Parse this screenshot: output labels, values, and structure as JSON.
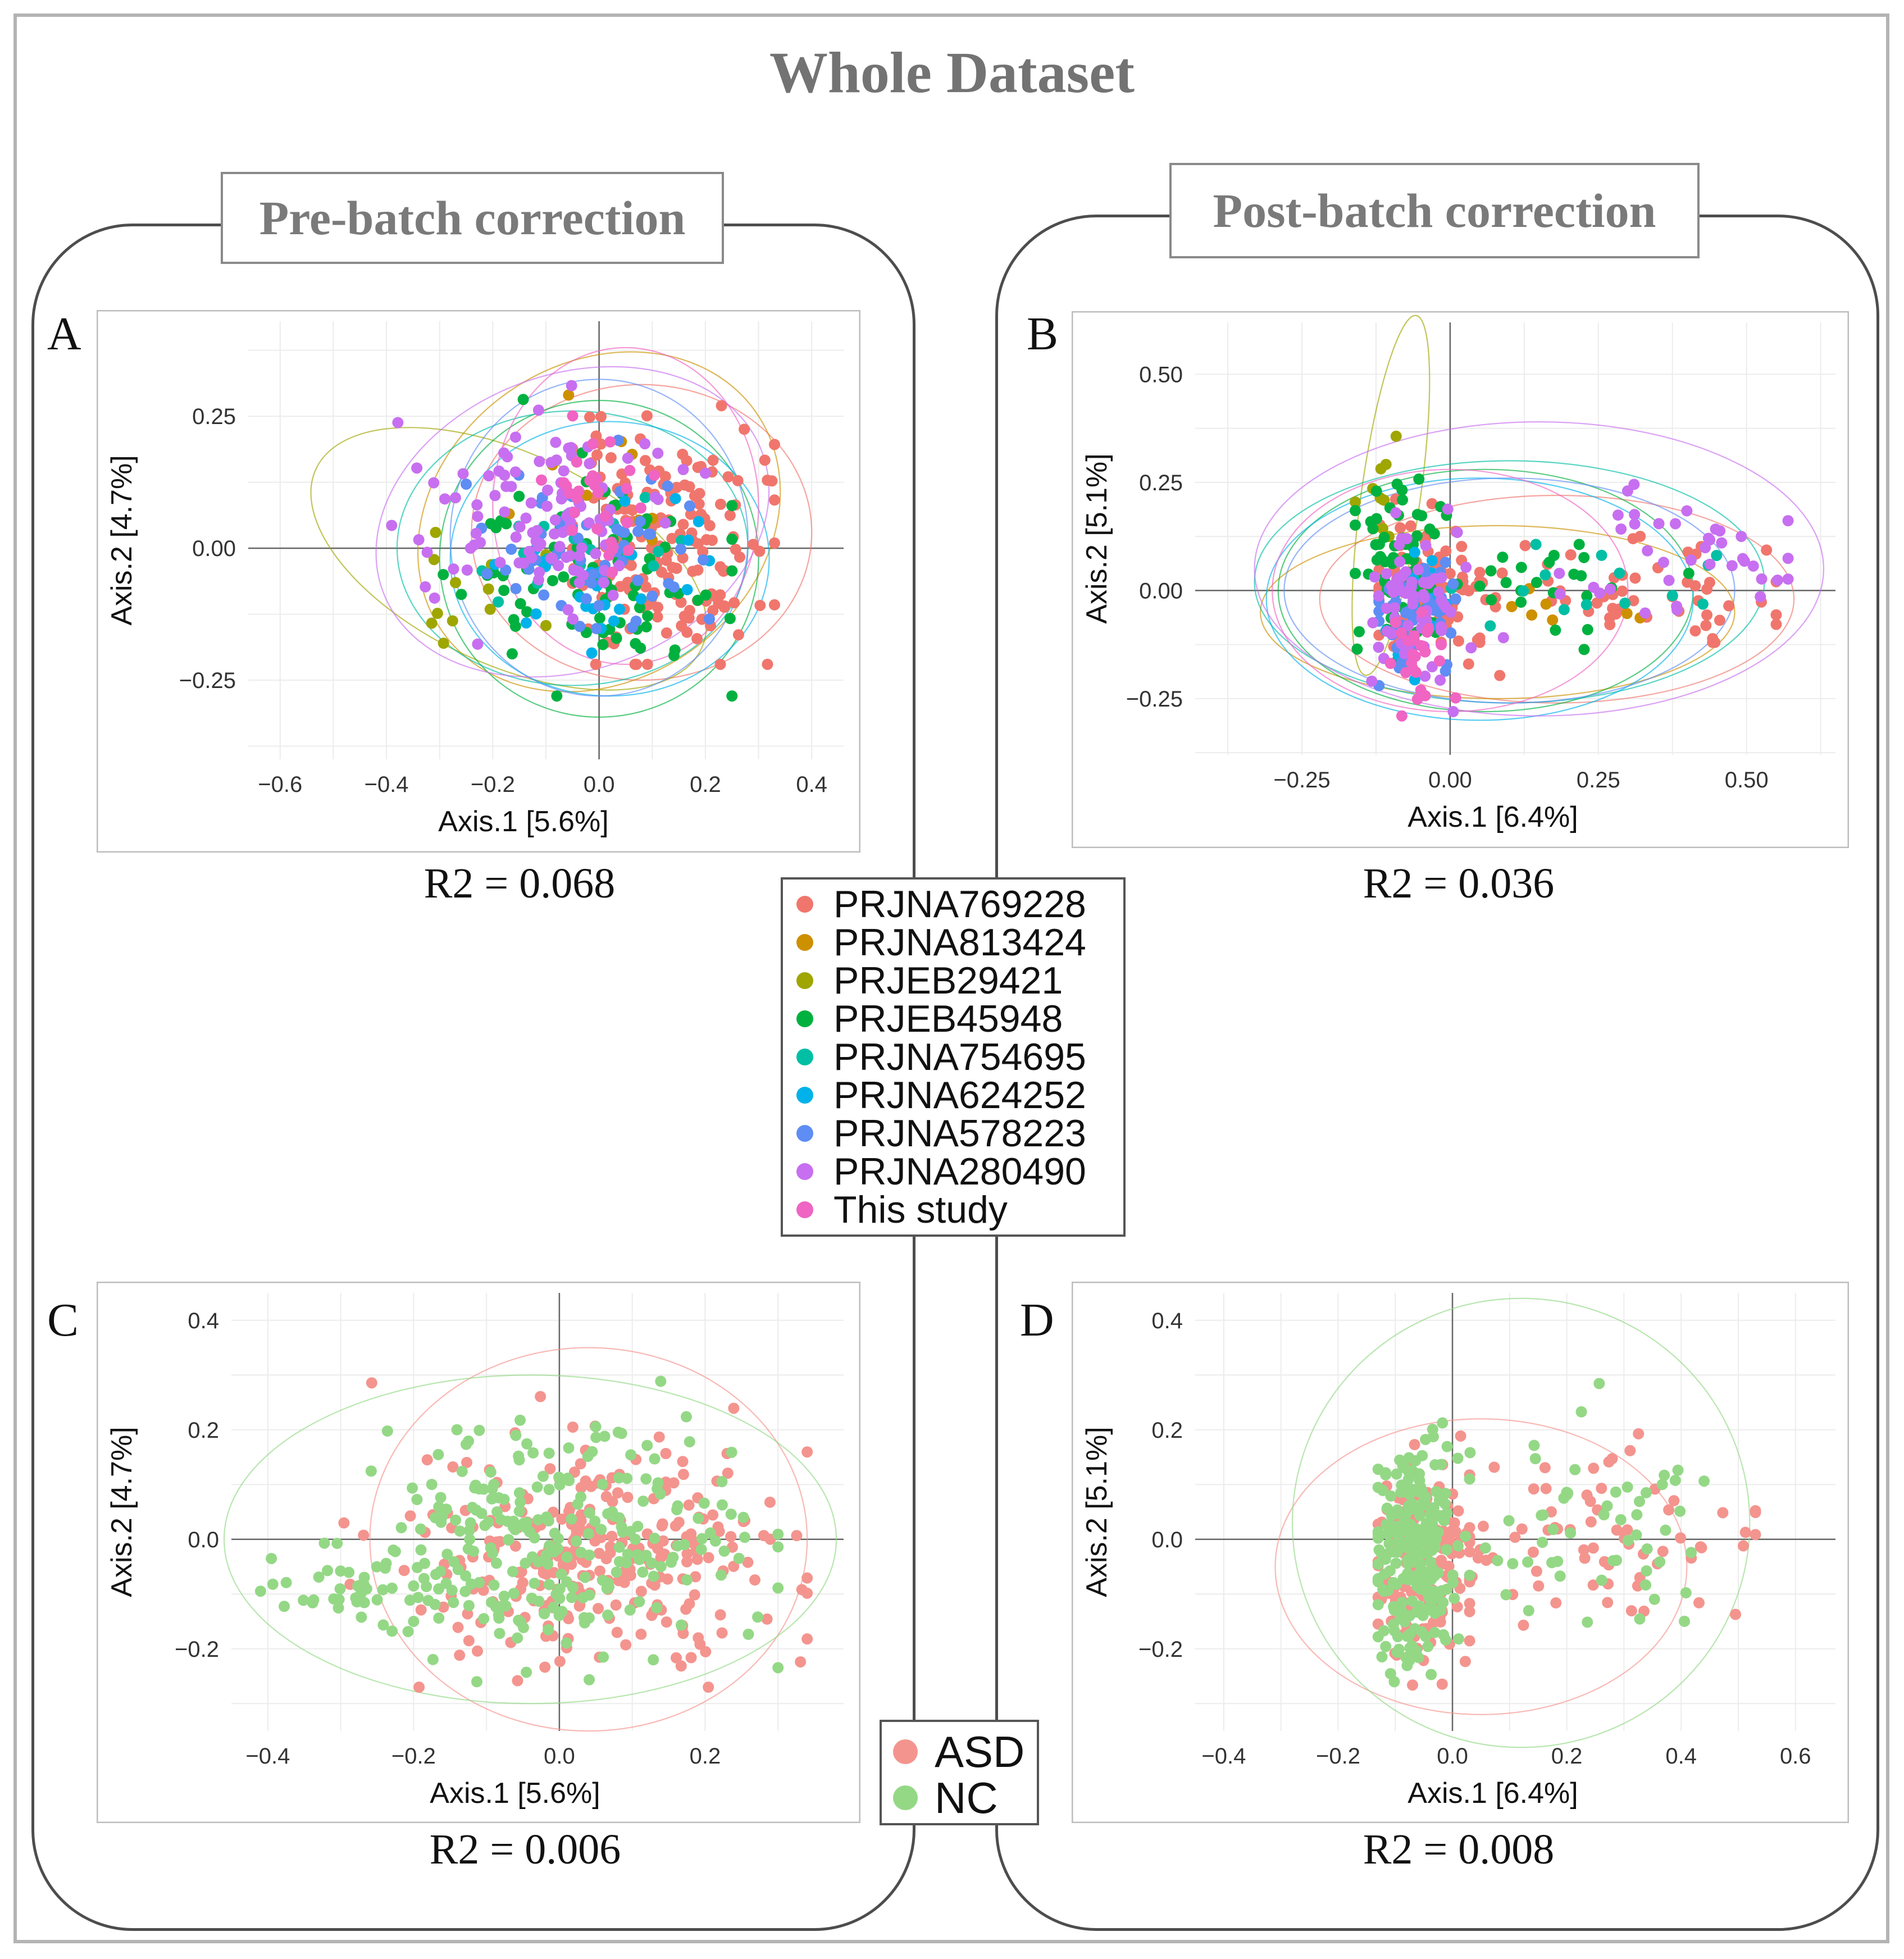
{
  "title": "Whole Dataset",
  "sections": {
    "pre_label": "Pre-batch correction",
    "post_label": "Post-batch correction"
  },
  "batch_legend": {
    "items": [
      {
        "label": "PRJNA769228",
        "color": "#F0766D"
      },
      {
        "label": "PRJNA813424",
        "color": "#CD9000"
      },
      {
        "label": "PRJEB29421",
        "color": "#9FA600"
      },
      {
        "label": "PRJEB45948",
        "color": "#00B13F"
      },
      {
        "label": "PRJNA754695",
        "color": "#00BFA4"
      },
      {
        "label": "PRJNA624252",
        "color": "#00B2E9"
      },
      {
        "label": "PRJNA578223",
        "color": "#5E8DF4"
      },
      {
        "label": "PRJNA280490",
        "color": "#C76FF0"
      },
      {
        "label": "This study",
        "color": "#F064C3"
      }
    ]
  },
  "group_legend": {
    "items": [
      {
        "label": "ASD",
        "color": "#F4948E"
      },
      {
        "label": "NC",
        "color": "#94D886"
      }
    ]
  },
  "chart_data": [
    {
      "panel": "A",
      "type": "scatter",
      "color_by": "batch",
      "xlabel": "Axis.1   [5.6%]",
      "ylabel": "Axis.2   [4.7%]",
      "xlim": [
        -0.66,
        0.46
      ],
      "ylim": [
        -0.4,
        0.43
      ],
      "xticks": [
        -0.6,
        -0.4,
        -0.2,
        0.0,
        0.2,
        0.4
      ],
      "xtick_labels": [
        "−0.6",
        "−0.4",
        "−0.2",
        "0.0",
        "0.2",
        "0.4"
      ],
      "yticks": [
        -0.25,
        0.0,
        0.25
      ],
      "ytick_labels": [
        "−0.25",
        "0.00",
        "0.25"
      ],
      "grid": true,
      "annotation": "R2 = 0.068",
      "clusters": [
        {
          "series": "PRJNA769228",
          "center": [
            0.12,
            0.0
          ],
          "spread": [
            0.09,
            0.11
          ],
          "n": 170,
          "seed": 11,
          "xr": [
            -0.05,
            0.33
          ],
          "yr": [
            -0.22,
            0.42
          ]
        },
        {
          "series": "PRJNA813424",
          "center": [
            -0.05,
            0.1
          ],
          "spread": [
            0.08,
            0.08
          ],
          "n": 12,
          "seed": 12,
          "xr": [
            -0.2,
            0.1
          ],
          "yr": [
            -0.05,
            0.38
          ]
        },
        {
          "series": "PRJEB29421",
          "center": [
            -0.26,
            -0.08
          ],
          "spread": [
            0.07,
            0.05
          ],
          "n": 12,
          "seed": 13,
          "xr": [
            -0.4,
            -0.1
          ],
          "yr": [
            -0.18,
            0.05
          ]
        },
        {
          "series": "PRJEB45948",
          "center": [
            0.0,
            -0.05
          ],
          "spread": [
            0.12,
            0.1
          ],
          "n": 80,
          "seed": 14,
          "xr": [
            -0.3,
            0.25
          ],
          "yr": [
            -0.28,
            0.38
          ]
        },
        {
          "series": "PRJNA754695",
          "center": [
            -0.05,
            0.0
          ],
          "spread": [
            0.1,
            0.08
          ],
          "n": 18,
          "seed": 15,
          "xr": [
            -0.3,
            0.25
          ],
          "yr": [
            -0.2,
            0.25
          ]
        },
        {
          "series": "PRJNA624252",
          "center": [
            0.02,
            -0.05
          ],
          "spread": [
            0.1,
            0.08
          ],
          "n": 30,
          "seed": 16,
          "xr": [
            -0.25,
            0.28
          ],
          "yr": [
            -0.25,
            0.25
          ]
        },
        {
          "series": "PRJNA578223",
          "center": [
            -0.02,
            0.0
          ],
          "spread": [
            0.1,
            0.1
          ],
          "n": 60,
          "seed": 17,
          "xr": [
            -0.25,
            0.3
          ],
          "yr": [
            -0.25,
            0.4
          ]
        },
        {
          "series": "PRJNA280490",
          "center": [
            -0.1,
            0.05
          ],
          "spread": [
            0.12,
            0.09
          ],
          "n": 110,
          "seed": 18,
          "xr": [
            -0.4,
            0.2
          ],
          "yr": [
            -0.2,
            0.38
          ]
        },
        {
          "series": "This study",
          "center": [
            0.0,
            0.1
          ],
          "spread": [
            0.05,
            0.07
          ],
          "n": 30,
          "seed": 19,
          "xr": [
            -0.15,
            0.2
          ],
          "yr": [
            -0.1,
            0.35
          ]
        }
      ],
      "ellipses": [
        {
          "series": "PRJNA769228",
          "center": [
            0.08,
            0.03
          ],
          "radii": [
            0.32,
            0.28
          ],
          "angle": 0
        },
        {
          "series": "PRJNA813424",
          "center": [
            0.0,
            0.05
          ],
          "radii": [
            0.36,
            0.3
          ],
          "angle": -35
        },
        {
          "series": "PRJEB29421",
          "center": [
            -0.17,
            -0.02
          ],
          "radii": [
            0.4,
            0.2
          ],
          "angle": 25
        },
        {
          "series": "PRJEB45948",
          "center": [
            0.0,
            -0.02
          ],
          "radii": [
            0.3,
            0.3
          ],
          "angle": 0
        },
        {
          "series": "PRJNA754695",
          "center": [
            -0.05,
            0.0
          ],
          "radii": [
            0.33,
            0.26
          ],
          "angle": 0
        },
        {
          "series": "PRJNA624252",
          "center": [
            0.02,
            -0.02
          ],
          "radii": [
            0.3,
            0.26
          ],
          "angle": 0
        },
        {
          "series": "PRJNA578223",
          "center": [
            0.0,
            0.02
          ],
          "radii": [
            0.28,
            0.3
          ],
          "angle": 0
        },
        {
          "series": "PRJNA280490",
          "center": [
            -0.05,
            0.05
          ],
          "radii": [
            0.38,
            0.28
          ],
          "angle": -20
        },
        {
          "series": "This study",
          "center": [
            0.05,
            0.08
          ],
          "radii": [
            0.25,
            0.3
          ],
          "angle": 0
        }
      ]
    },
    {
      "panel": "B",
      "type": "scatter",
      "color_by": "batch",
      "xlabel": "Axis.1   [6.4%]",
      "ylabel": "Axis.2   [5.1%]",
      "xlim": [
        -0.43,
        0.65
      ],
      "ylim": [
        -0.38,
        0.62
      ],
      "xticks": [
        -0.25,
        0.0,
        0.25,
        0.5
      ],
      "xtick_labels": [
        "−0.25",
        "0.00",
        "0.25",
        "0.50"
      ],
      "yticks": [
        -0.25,
        0.0,
        0.25,
        0.5
      ],
      "ytick_labels": [
        "−0.25",
        "0.00",
        "0.25",
        "0.50"
      ],
      "grid": true,
      "annotation": "R2 = 0.036",
      "clusters": [
        {
          "series": "PRJNA769228",
          "center": [
            -0.04,
            0.0
          ],
          "spread": [
            0.05,
            0.08
          ],
          "n": 100,
          "seed": 21,
          "xr": [
            -0.12,
            0.1
          ],
          "yr": [
            -0.25,
            0.35
          ]
        },
        {
          "series": "PRJNA769228",
          "center": [
            0.3,
            0.0
          ],
          "spread": [
            0.15,
            0.06
          ],
          "n": 55,
          "seed": 22,
          "xr": [
            0.05,
            0.55
          ],
          "yr": [
            -0.12,
            0.15
          ]
        },
        {
          "series": "PRJNA813424",
          "center": [
            0.1,
            -0.04
          ],
          "spread": [
            0.1,
            0.04
          ],
          "n": 8,
          "seed": 23,
          "xr": [
            -0.05,
            0.35
          ],
          "yr": [
            -0.12,
            0.03
          ]
        },
        {
          "series": "PRJEB29421",
          "center": [
            -0.12,
            0.25
          ],
          "spread": [
            0.02,
            0.08
          ],
          "n": 10,
          "seed": 24,
          "xr": [
            -0.16,
            -0.08
          ],
          "yr": [
            0.1,
            0.42
          ]
        },
        {
          "series": "PRJEB45948",
          "center": [
            -0.08,
            0.05
          ],
          "spread": [
            0.04,
            0.1
          ],
          "n": 70,
          "seed": 25,
          "xr": [
            -0.16,
            0.05
          ],
          "yr": [
            -0.2,
            0.42
          ]
        },
        {
          "series": "PRJEB45948",
          "center": [
            0.18,
            0.0
          ],
          "spread": [
            0.1,
            0.07
          ],
          "n": 22,
          "seed": 26,
          "xr": [
            0.05,
            0.55
          ],
          "yr": [
            -0.2,
            0.15
          ]
        },
        {
          "series": "PRJNA754695",
          "center": [
            0.25,
            0.0
          ],
          "spread": [
            0.15,
            0.06
          ],
          "n": 14,
          "seed": 27,
          "xr": [
            -0.12,
            0.55
          ],
          "yr": [
            -0.15,
            0.15
          ]
        },
        {
          "series": "PRJNA624252",
          "center": [
            -0.05,
            -0.05
          ],
          "spread": [
            0.04,
            0.07
          ],
          "n": 20,
          "seed": 28,
          "xr": [
            -0.12,
            0.35
          ],
          "yr": [
            -0.22,
            0.1
          ]
        },
        {
          "series": "PRJNA578223",
          "center": [
            -0.06,
            -0.05
          ],
          "spread": [
            0.04,
            0.07
          ],
          "n": 50,
          "seed": 29,
          "xr": [
            -0.12,
            0.45
          ],
          "yr": [
            -0.22,
            0.25
          ]
        },
        {
          "series": "PRJNA280490",
          "center": [
            -0.06,
            -0.03
          ],
          "spread": [
            0.04,
            0.09
          ],
          "n": 70,
          "seed": 30,
          "xr": [
            -0.15,
            0.1
          ],
          "yr": [
            -0.28,
            0.45
          ]
        },
        {
          "series": "PRJNA280490",
          "center": [
            0.4,
            0.08
          ],
          "spread": [
            0.12,
            0.08
          ],
          "n": 40,
          "seed": 31,
          "xr": [
            0.05,
            0.57
          ],
          "yr": [
            -0.15,
            0.4
          ]
        },
        {
          "series": "This study",
          "center": [
            -0.05,
            -0.15
          ],
          "spread": [
            0.03,
            0.05
          ],
          "n": 25,
          "seed": 32,
          "xr": [
            -0.12,
            0.05
          ],
          "yr": [
            -0.29,
            -0.05
          ]
        }
      ],
      "ellipses": [
        {
          "series": "PRJNA769228",
          "center": [
            0.18,
            -0.02
          ],
          "radii": [
            0.4,
            0.24
          ],
          "angle": 0
        },
        {
          "series": "PRJNA813424",
          "center": [
            0.08,
            -0.05
          ],
          "radii": [
            0.4,
            0.2
          ],
          "angle": 0
        },
        {
          "series": "PRJEB29421",
          "center": [
            -0.1,
            0.22
          ],
          "radii": [
            0.05,
            0.42
          ],
          "angle": 8
        },
        {
          "series": "PRJEB45948",
          "center": [
            0.06,
            0.0
          ],
          "radii": [
            0.35,
            0.28
          ],
          "angle": 0
        },
        {
          "series": "PRJNA754695",
          "center": [
            0.1,
            0.02
          ],
          "radii": [
            0.43,
            0.28
          ],
          "angle": 0
        },
        {
          "series": "PRJNA624252",
          "center": [
            0.05,
            -0.02
          ],
          "radii": [
            0.36,
            0.28
          ],
          "angle": 0
        },
        {
          "series": "PRJNA578223",
          "center": [
            0.1,
            0.0
          ],
          "radii": [
            0.38,
            0.26
          ],
          "angle": 0
        },
        {
          "series": "PRJNA280490",
          "center": [
            0.15,
            0.05
          ],
          "radii": [
            0.48,
            0.34
          ],
          "angle": 0
        },
        {
          "series": "This study",
          "center": [
            0.0,
            0.0
          ],
          "radii": [
            0.3,
            0.28
          ],
          "angle": 0
        }
      ]
    },
    {
      "panel": "C",
      "type": "scatter",
      "color_by": "group",
      "xlabel": "Axis.1   [5.6%]",
      "ylabel": "Axis.2   [4.7%]",
      "xlim": [
        -0.45,
        0.39
      ],
      "ylim": [
        -0.35,
        0.45
      ],
      "xticks": [
        -0.4,
        -0.2,
        0.0,
        0.2
      ],
      "xtick_labels": [
        "−0.4",
        "−0.2",
        "0.0",
        "0.2"
      ],
      "yticks": [
        -0.2,
        0.0,
        0.2,
        0.4
      ],
      "ytick_labels": [
        "−0.2",
        "0.0",
        "0.2",
        "0.4"
      ],
      "grid": true,
      "annotation": "R2 = 0.006",
      "clusters": [
        {
          "series": "ASD",
          "center": [
            0.05,
            -0.02
          ],
          "spread": [
            0.12,
            0.11
          ],
          "n": 280,
          "seed": 41,
          "xr": [
            -0.33,
            0.34
          ],
          "yr": [
            -0.27,
            0.43
          ]
        },
        {
          "series": "NC",
          "center": [
            -0.02,
            0.0
          ],
          "spread": [
            0.14,
            0.1
          ],
          "n": 260,
          "seed": 42,
          "xr": [
            -0.41,
            0.3
          ],
          "yr": [
            -0.26,
            0.44
          ]
        },
        {
          "series": "NC",
          "center": [
            -0.3,
            -0.1
          ],
          "spread": [
            0.06,
            0.04
          ],
          "n": 30,
          "seed": 43,
          "xr": [
            -0.41,
            -0.2
          ],
          "yr": [
            -0.17,
            0.0
          ]
        }
      ],
      "ellipses": [
        {
          "series": "ASD",
          "center": [
            0.04,
            0.0
          ],
          "radii": [
            0.3,
            0.35
          ],
          "angle": 0
        },
        {
          "series": "NC",
          "center": [
            -0.04,
            0.0
          ],
          "radii": [
            0.42,
            0.3
          ],
          "angle": 0
        }
      ]
    },
    {
      "panel": "D",
      "type": "scatter",
      "color_by": "group",
      "xlabel": "Axis.1   [6.4%]",
      "ylabel": "Axis.2   [5.1%]",
      "xlim": [
        -0.45,
        0.67
      ],
      "ylim": [
        -0.35,
        0.45
      ],
      "xticks": [
        -0.4,
        -0.2,
        0.0,
        0.2,
        0.4,
        0.6
      ],
      "xtick_labels": [
        "−0.4",
        "−0.2",
        "0.0",
        "0.2",
        "0.4",
        "0.6"
      ],
      "yticks": [
        -0.2,
        0.0,
        0.2,
        0.4
      ],
      "ytick_labels": [
        "−0.2",
        "0.0",
        "0.2",
        "0.4"
      ],
      "grid": true,
      "annotation": "R2 = 0.008",
      "clusters": [
        {
          "series": "ASD",
          "center": [
            -0.06,
            -0.05
          ],
          "spread": [
            0.04,
            0.09
          ],
          "n": 150,
          "seed": 51,
          "xr": [
            -0.13,
            0.03
          ],
          "yr": [
            -0.28,
            0.4
          ]
        },
        {
          "series": "ASD",
          "center": [
            0.3,
            0.0
          ],
          "spread": [
            0.14,
            0.08
          ],
          "n": 75,
          "seed": 52,
          "xr": [
            0.03,
            0.53
          ],
          "yr": [
            -0.2,
            0.22
          ]
        },
        {
          "series": "NC",
          "center": [
            -0.07,
            -0.03
          ],
          "spread": [
            0.035,
            0.1
          ],
          "n": 240,
          "seed": 53,
          "xr": [
            -0.13,
            0.03
          ],
          "yr": [
            -0.26,
            0.44
          ]
        },
        {
          "series": "NC",
          "center": [
            0.25,
            0.02
          ],
          "spread": [
            0.14,
            0.1
          ],
          "n": 55,
          "seed": 54,
          "xr": [
            0.03,
            0.56
          ],
          "yr": [
            -0.2,
            0.4
          ]
        }
      ],
      "ellipses": [
        {
          "series": "ASD",
          "center": [
            0.05,
            -0.05
          ],
          "radii": [
            0.36,
            0.27
          ],
          "angle": 0
        },
        {
          "series": "NC",
          "center": [
            0.12,
            0.03
          ],
          "radii": [
            0.4,
            0.41
          ],
          "angle": 0
        }
      ]
    }
  ]
}
